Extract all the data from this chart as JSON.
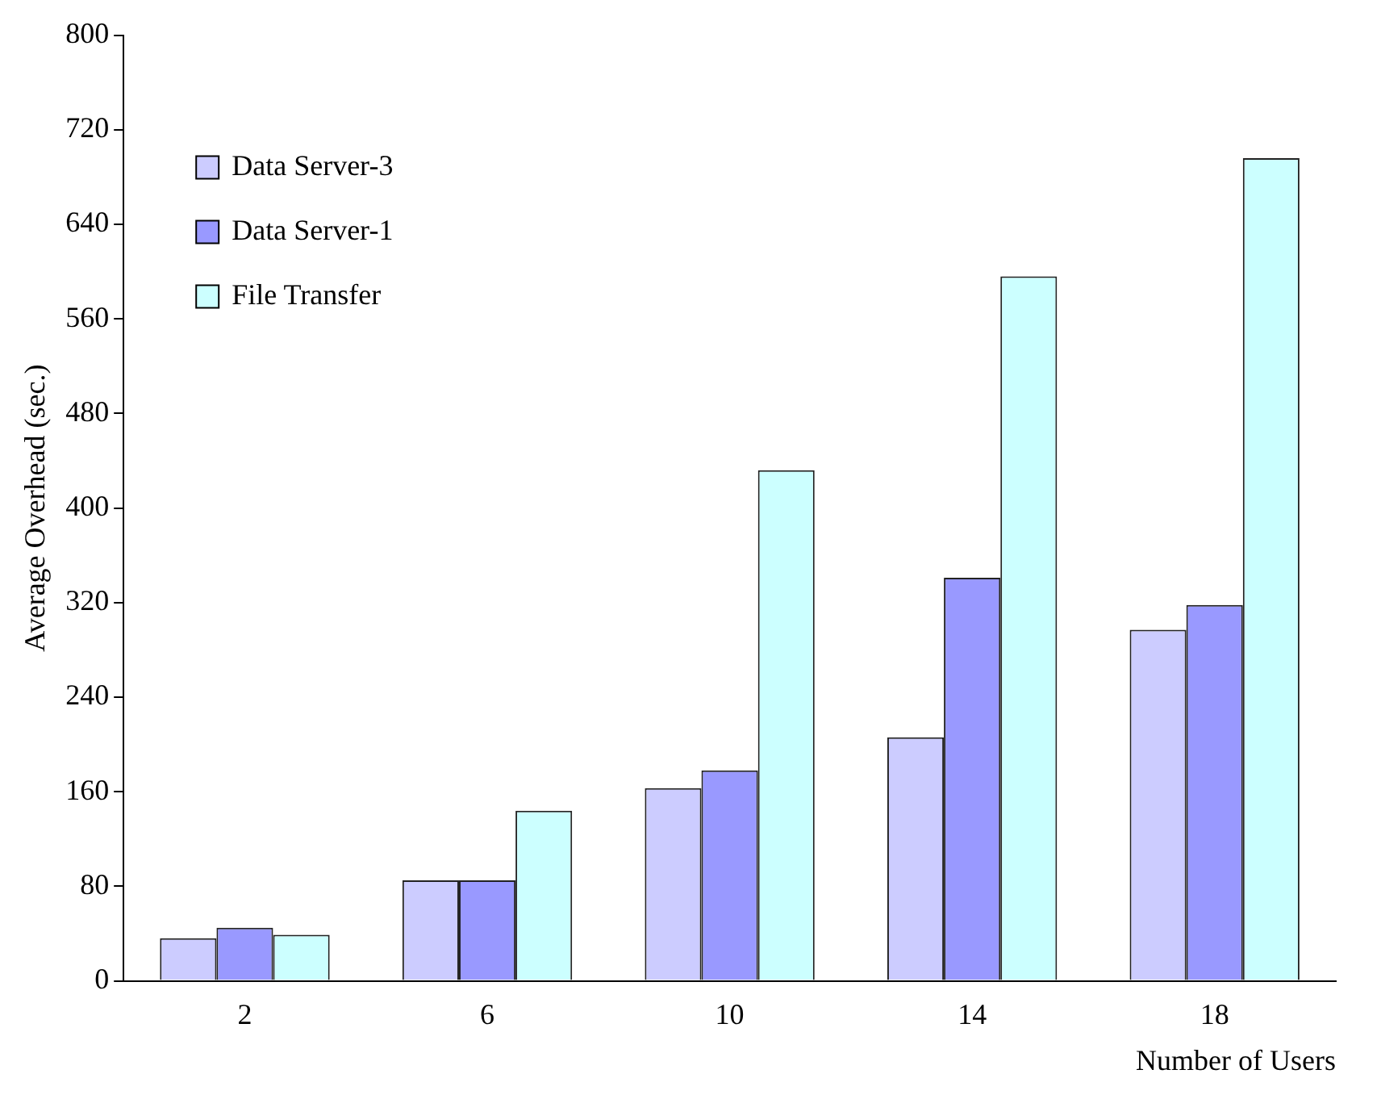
{
  "chart_data": {
    "type": "bar",
    "xlabel": "Number of Users",
    "ylabel": "Average Overhead (sec.)",
    "categories": [
      "2",
      "6",
      "10",
      "14",
      "18"
    ],
    "series": [
      {
        "name": "Data Server-3",
        "color": "#ccccff",
        "values": [
          36,
          85,
          163,
          206,
          297
        ]
      },
      {
        "name": "Data Server-1",
        "color": "#9999ff",
        "values": [
          45,
          85,
          178,
          341,
          318
        ]
      },
      {
        "name": "File Transfer",
        "color": "#ccffff",
        "values": [
          39,
          144,
          432,
          596,
          696
        ]
      }
    ],
    "ylim": [
      0,
      800
    ],
    "yticks": [
      0,
      80,
      160,
      240,
      320,
      400,
      480,
      560,
      640,
      720,
      800
    ],
    "grid": false,
    "legend": "top left"
  }
}
